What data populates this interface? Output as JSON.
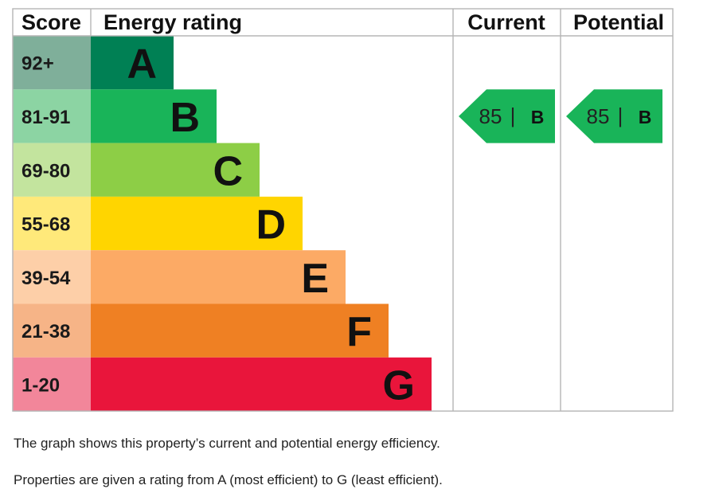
{
  "chart_data": {
    "type": "bar",
    "headers": {
      "score": "Score",
      "rating": "Energy rating",
      "current": "Current",
      "potential": "Potential"
    },
    "bands": [
      {
        "score": "92+",
        "letter": "A",
        "color": "#008054",
        "score_bg": "#7faf9a"
      },
      {
        "score": "81-91",
        "letter": "B",
        "color": "#19b459",
        "score_bg": "#8cd4a3"
      },
      {
        "score": "69-80",
        "letter": "C",
        "color": "#8dce46",
        "score_bg": "#c3e49e"
      },
      {
        "score": "55-68",
        "letter": "D",
        "color": "#ffd500",
        "score_bg": "#ffe97a"
      },
      {
        "score": "39-54",
        "letter": "E",
        "color": "#fcaa65",
        "score_bg": "#fdcfa8"
      },
      {
        "score": "21-38",
        "letter": "F",
        "color": "#ef8023",
        "score_bg": "#f6b487"
      },
      {
        "score": "1-20",
        "letter": "G",
        "color": "#e9153b",
        "score_bg": "#f2869a"
      }
    ],
    "current": {
      "value": "85",
      "separator": "|",
      "letter": "B",
      "color": "#19b459"
    },
    "potential": {
      "value": "85",
      "separator": "|",
      "letter": "B",
      "color": "#19b459"
    }
  },
  "notes": [
    "The graph shows this property’s current and potential energy efficiency.",
    "Properties are given a rating from A (most efficient) to G (least efficient)."
  ]
}
